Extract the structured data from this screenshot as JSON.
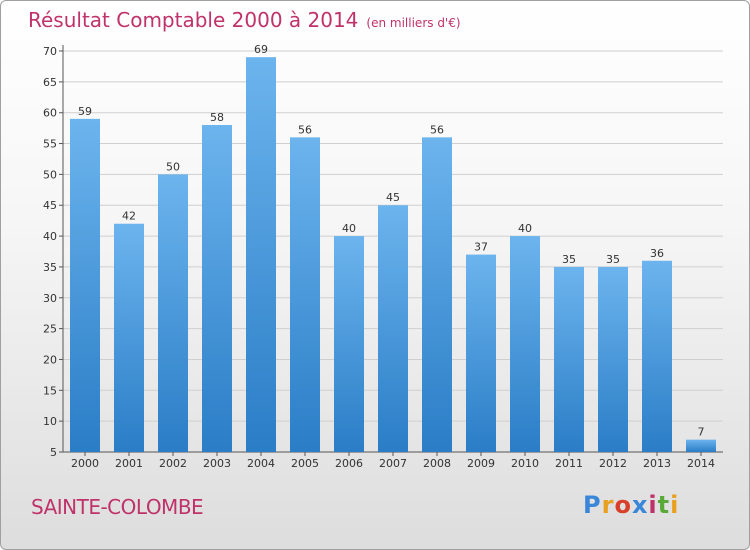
{
  "title": "Résultat Comptable 2000 à 2014",
  "subtitle": "(en milliers d'€)",
  "commune": "SAINTE-COLOMBE",
  "logo": {
    "letters": [
      "P",
      "r",
      "o",
      "x",
      "i",
      "t",
      "i"
    ],
    "colors": [
      "#3a86d8",
      "#e8a020",
      "#d8402a",
      "#3a86d8",
      "#c0326a",
      "#5aaa3a",
      "#e8a020"
    ]
  },
  "colors": {
    "bar_top": "#6cb4ee",
    "bar_bottom": "#2a7dc6",
    "title": "#c0326a"
  },
  "chart_data": {
    "type": "bar",
    "title": "Résultat Comptable 2000 à 2014",
    "subtitle": "(en milliers d'€)",
    "categories": [
      "2000",
      "2001",
      "2002",
      "2003",
      "2004",
      "2005",
      "2006",
      "2007",
      "2008",
      "2009",
      "2010",
      "2011",
      "2012",
      "2013",
      "2014"
    ],
    "values": [
      59,
      42,
      50,
      58,
      69,
      56,
      40,
      45,
      56,
      37,
      40,
      35,
      35,
      36,
      7
    ],
    "ylim": [
      5,
      70
    ],
    "yticks": [
      5,
      10,
      15,
      20,
      25,
      30,
      35,
      40,
      45,
      50,
      55,
      60,
      65,
      70
    ],
    "grid": true,
    "xlabel": "",
    "ylabel": ""
  }
}
